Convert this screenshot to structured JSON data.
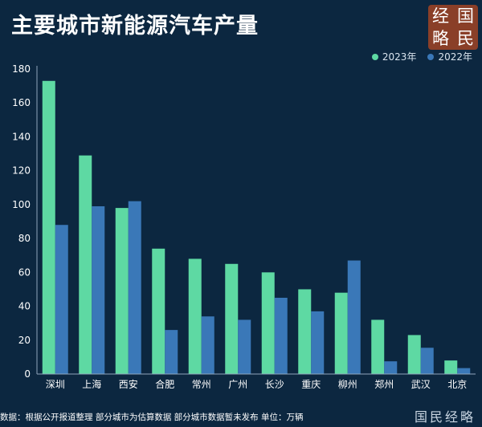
{
  "title": "主要城市新能源汽车产量",
  "logo": {
    "chars": [
      "经",
      "国",
      "略",
      "民"
    ]
  },
  "brand": "国民经略",
  "footer": "数据：根据公开报道整理 部分城市为估算数据 部分城市数据暂未发布 单位：万辆",
  "colors": {
    "background": "#0c2740",
    "series_2023": "#5ed9a3",
    "series_2022": "#3a78b8",
    "logo": "#8a3f28"
  },
  "chart_data": {
    "type": "bar",
    "categories": [
      "深圳",
      "上海",
      "西安",
      "合肥",
      "常州",
      "广州",
      "长沙",
      "重庆",
      "柳州",
      "郑州",
      "武汉",
      "北京"
    ],
    "series": [
      {
        "name": "2023年",
        "color": "#5ed9a3",
        "values": [
          173,
          129,
          98,
          74,
          68,
          65,
          60,
          50,
          48,
          32,
          23,
          8
        ]
      },
      {
        "name": "2022年",
        "color": "#3a78b8",
        "values": [
          88,
          99,
          102,
          26,
          34,
          32,
          45,
          37,
          67,
          7.5,
          15.5,
          3.5
        ]
      }
    ],
    "ylim": [
      0,
      180
    ],
    "yticks": [
      0,
      20,
      40,
      60,
      80,
      100,
      120,
      140,
      160,
      180
    ],
    "legend_position": "top-right",
    "grid": false
  }
}
